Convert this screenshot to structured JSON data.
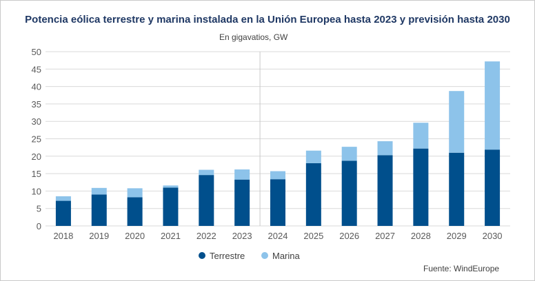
{
  "chart_data": {
    "type": "bar",
    "stacked": true,
    "title": "Potencia eólica terrestre y marina instalada en la Unión Europea hasta 2023 y previsión hasta 2030",
    "subtitle": "En gigavatios, GW",
    "source": "Fuente: WindEurope",
    "categories": [
      "2018",
      "2019",
      "2020",
      "2021",
      "2022",
      "2023",
      "2024",
      "2025",
      "2026",
      "2027",
      "2028",
      "2029",
      "2030"
    ],
    "series": [
      {
        "name": "Terrestre",
        "color": "#004f8c",
        "values": [
          7.2,
          9.0,
          8.2,
          11.0,
          14.6,
          13.3,
          13.4,
          18.0,
          18.7,
          20.3,
          22.2,
          21.0,
          21.9
        ]
      },
      {
        "name": "Marina",
        "color": "#8dc3ea",
        "values": [
          1.3,
          1.9,
          2.6,
          0.6,
          1.5,
          2.9,
          2.3,
          3.6,
          4.0,
          4.0,
          7.4,
          17.7,
          25.3
        ]
      }
    ],
    "ylim": [
      0,
      50
    ],
    "yticks": [
      0,
      5,
      10,
      15,
      20,
      25,
      30,
      35,
      40,
      45,
      50
    ],
    "grid": true,
    "legend_position": "bottom",
    "forecast_divider_after": "2023"
  }
}
